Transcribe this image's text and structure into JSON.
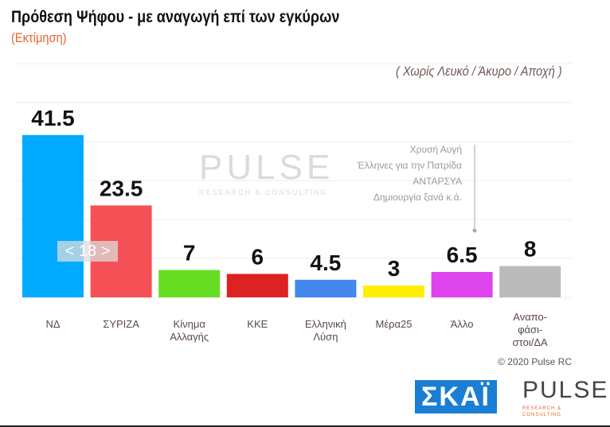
{
  "title": "Πρόθεση Ψήφου - με αναγωγή επί των εγκύρων",
  "subtitle": "(Εκτίμηση)",
  "note": "( Χωρίς Λευκό / Άκυρο / Αποχή )",
  "others_list": [
    "Χρυσή Αυγή",
    "Έλληνες για την Πατρίδα",
    "ΑΝΤΑΡΣΥΑ",
    "Δημιουργία ξανά   κ.ά."
  ],
  "badge": "< 18 >",
  "copyright": "© 2020 Pulse RC",
  "watermark": {
    "name": "PULSE",
    "tagline": "RESEARCH & CONSULTING"
  },
  "logos": {
    "skai": "ΣΚΑΪ",
    "pulse": "PULSE",
    "pulse_tagline": "RESEARCH & CONSULTING"
  },
  "chart_data": {
    "type": "bar",
    "title": "Πρόθεση Ψήφου - με αναγωγή επί των εγκύρων",
    "categories": [
      "ΝΔ",
      "ΣΥΡΙΖΑ",
      "Κίνημα Αλλαγής",
      "ΚΚΕ",
      "Ελληνική Λύση",
      "Μέρα25",
      "Άλλο",
      "Αναπο-φάσι-στοι/ΔΑ"
    ],
    "values": [
      41.5,
      23.5,
      7,
      6,
      4.5,
      3,
      6.5,
      8
    ],
    "labels": [
      "41.5",
      "23.5",
      "7",
      "6",
      "4.5",
      "3",
      "6.5",
      "8"
    ],
    "colors": [
      "#00aaff",
      "#f55055",
      "#66dd22",
      "#dd2222",
      "#4488ee",
      "#ffee00",
      "#dd44ee",
      "#bbbbbb"
    ],
    "ylim": [
      0,
      45
    ],
    "grid": true
  }
}
